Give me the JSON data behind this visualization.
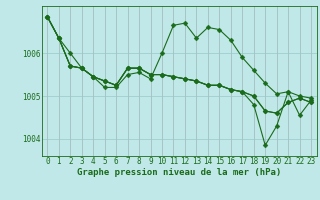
{
  "title": "Graphe pression niveau de la mer (hPa)",
  "bg_color": "#c0e8e8",
  "grid_color": "#98c8c8",
  "line_color": "#1a6b1a",
  "xlim": [
    -0.5,
    23.5
  ],
  "ylim": [
    1003.6,
    1007.1
  ],
  "yticks": [
    1004,
    1005,
    1006
  ],
  "xticks": [
    0,
    1,
    2,
    3,
    4,
    5,
    6,
    7,
    8,
    9,
    10,
    11,
    12,
    13,
    14,
    15,
    16,
    17,
    18,
    19,
    20,
    21,
    22,
    23
  ],
  "series": [
    [
      1006.85,
      1006.35,
      1006.0,
      1005.65,
      1005.45,
      1005.2,
      1005.2,
      1005.5,
      1005.55,
      1005.4,
      1006.0,
      1006.65,
      1006.7,
      1006.35,
      1006.6,
      1006.55,
      1006.3,
      1005.9,
      1005.6,
      1005.3,
      1005.05,
      1005.1,
      1005.0,
      1004.95
    ],
    [
      1006.85,
      1006.35,
      1005.7,
      1005.65,
      1005.45,
      1005.35,
      1005.25,
      1005.65,
      1005.65,
      1005.5,
      1005.5,
      1005.45,
      1005.4,
      1005.35,
      1005.25,
      1005.25,
      1005.15,
      1005.1,
      1005.0,
      1004.65,
      1004.6,
      1004.85,
      1004.95,
      1004.85
    ],
    [
      1006.85,
      1006.35,
      1005.7,
      1005.65,
      1005.45,
      1005.35,
      1005.25,
      1005.65,
      1005.65,
      1005.5,
      1005.5,
      1005.45,
      1005.4,
      1005.35,
      1005.25,
      1005.25,
      1005.15,
      1005.1,
      1004.8,
      1003.85,
      1004.3,
      1005.1,
      1004.55,
      1004.9
    ],
    [
      1006.85,
      1006.35,
      1005.7,
      1005.65,
      1005.45,
      1005.35,
      1005.25,
      1005.65,
      1005.65,
      1005.5,
      1005.5,
      1005.45,
      1005.4,
      1005.35,
      1005.25,
      1005.25,
      1005.15,
      1005.1,
      1005.0,
      1004.65,
      1004.6,
      1004.85,
      1004.95,
      1004.85
    ]
  ],
  "marker_size": 2.5,
  "linewidth": 0.8,
  "tick_fontsize": 5.5,
  "title_fontsize": 6.5
}
